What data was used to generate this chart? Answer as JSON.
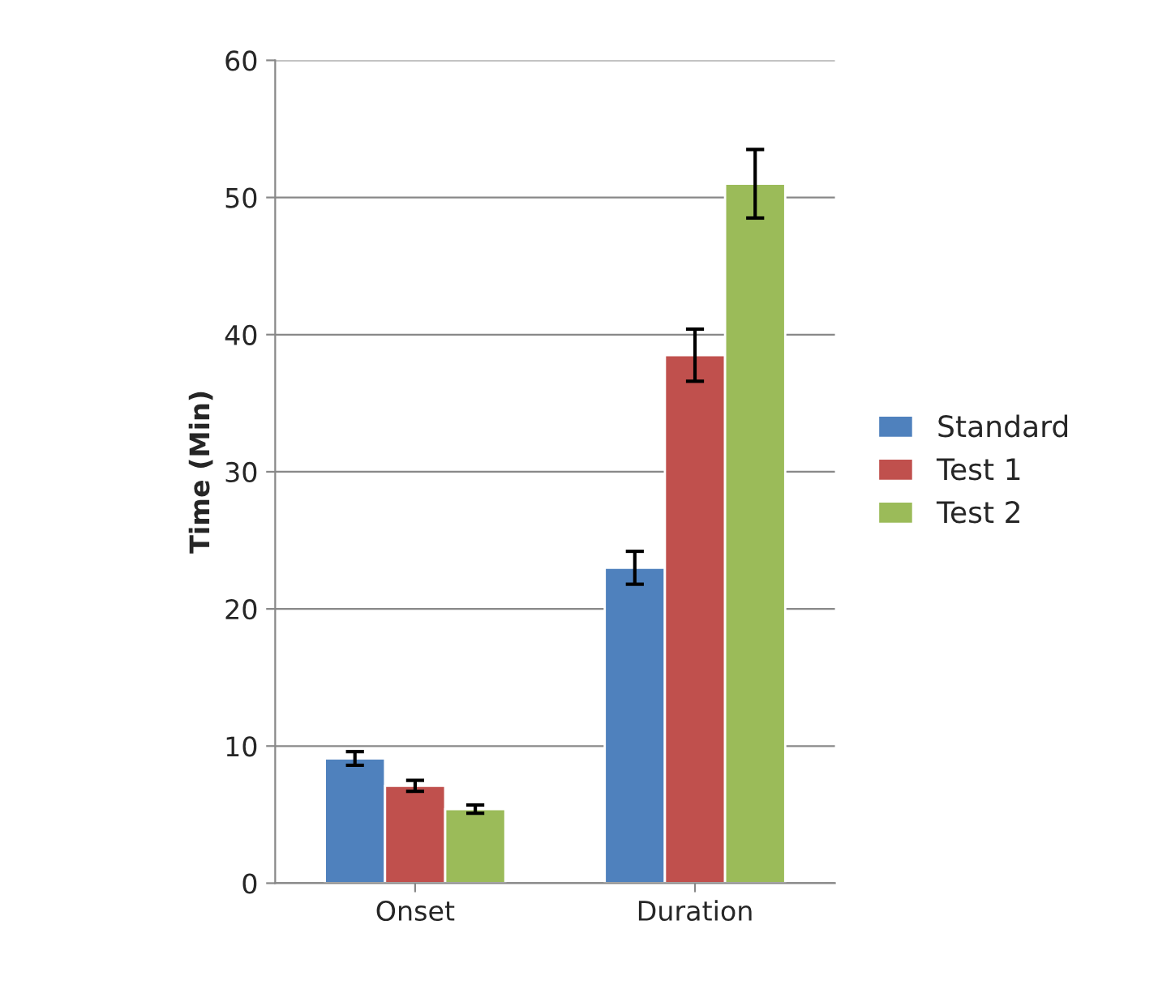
{
  "chart_data": {
    "type": "bar",
    "ylabel": "Time (Min)",
    "categories": [
      "Onset",
      "Duration"
    ],
    "series": [
      {
        "name": "Standard",
        "color": "#4f81bd",
        "values": [
          9.1,
          23.0
        ],
        "errors": [
          0.5,
          1.2
        ]
      },
      {
        "name": "Test 1",
        "color": "#c0504d",
        "values": [
          7.1,
          38.5
        ],
        "errors": [
          0.4,
          1.9
        ]
      },
      {
        "name": "Test 2",
        "color": "#9bbb59",
        "values": [
          5.4,
          51.0
        ],
        "errors": [
          0.3,
          2.5
        ]
      }
    ],
    "ylim": [
      0,
      60
    ],
    "yticks": [
      0,
      10,
      20,
      30,
      40,
      50,
      60
    ],
    "grid": "y",
    "legend": "right"
  }
}
